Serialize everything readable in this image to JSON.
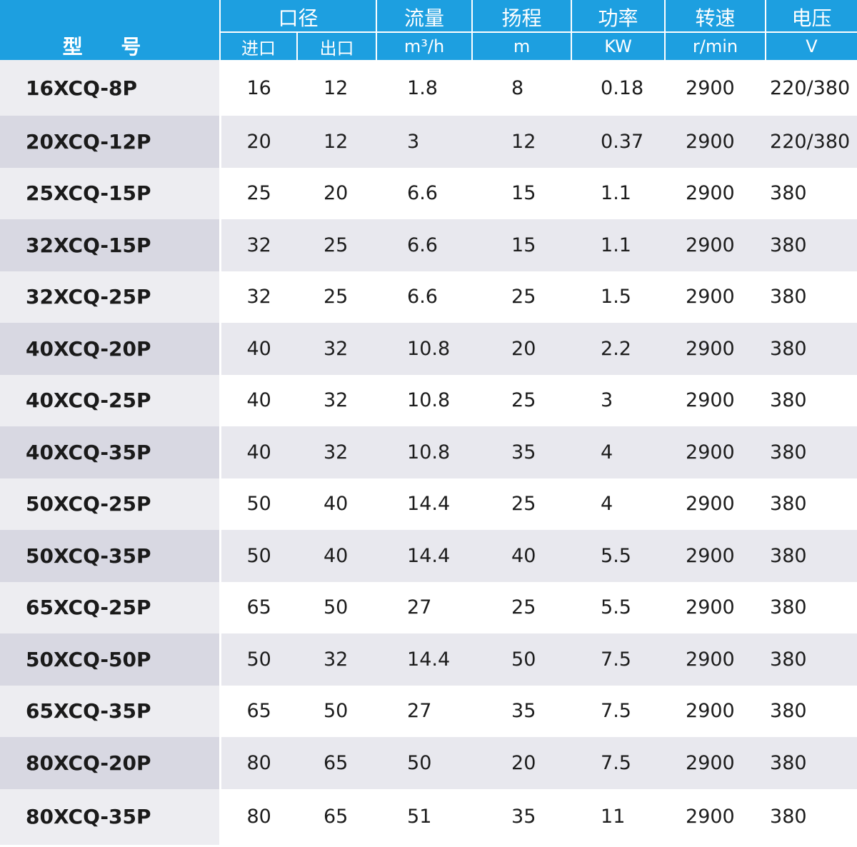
{
  "header": {
    "model": "型 号",
    "caliber": "口径",
    "inlet": "进口",
    "outlet": "出口",
    "flow": "流量",
    "flow_unit": "m³/h",
    "head": "扬程",
    "head_unit": "m",
    "power": "功率",
    "power_unit": "KW",
    "speed": "转速",
    "speed_unit": "r/min",
    "voltage": "电压",
    "voltage_unit": "V"
  },
  "rows": [
    {
      "model": "16XCQ-8P",
      "inlet": "16",
      "outlet": "12",
      "flow": "1.8",
      "head": "8",
      "power": "0.18",
      "speed": "2900",
      "voltage": "220/380"
    },
    {
      "model": "20XCQ-12P",
      "inlet": "20",
      "outlet": "12",
      "flow": "3",
      "head": "12",
      "power": "0.37",
      "speed": "2900",
      "voltage": "220/380"
    },
    {
      "model": "25XCQ-15P",
      "inlet": "25",
      "outlet": "20",
      "flow": "6.6",
      "head": "15",
      "power": "1.1",
      "speed": "2900",
      "voltage": "380"
    },
    {
      "model": "32XCQ-15P",
      "inlet": "32",
      "outlet": "25",
      "flow": "6.6",
      "head": "15",
      "power": "1.1",
      "speed": "2900",
      "voltage": "380"
    },
    {
      "model": "32XCQ-25P",
      "inlet": "32",
      "outlet": "25",
      "flow": "6.6",
      "head": "25",
      "power": "1.5",
      "speed": "2900",
      "voltage": "380"
    },
    {
      "model": "40XCQ-20P",
      "inlet": "40",
      "outlet": "32",
      "flow": "10.8",
      "head": "20",
      "power": "2.2",
      "speed": "2900",
      "voltage": "380"
    },
    {
      "model": "40XCQ-25P",
      "inlet": "40",
      "outlet": "32",
      "flow": "10.8",
      "head": "25",
      "power": "3",
      "speed": "2900",
      "voltage": "380"
    },
    {
      "model": "40XCQ-35P",
      "inlet": "40",
      "outlet": "32",
      "flow": "10.8",
      "head": "35",
      "power": "4",
      "speed": "2900",
      "voltage": "380"
    },
    {
      "model": "50XCQ-25P",
      "inlet": "50",
      "outlet": "40",
      "flow": "14.4",
      "head": "25",
      "power": "4",
      "speed": "2900",
      "voltage": "380"
    },
    {
      "model": "50XCQ-35P",
      "inlet": "50",
      "outlet": "40",
      "flow": "14.4",
      "head": "40",
      "power": "5.5",
      "speed": "2900",
      "voltage": "380"
    },
    {
      "model": "65XCQ-25P",
      "inlet": "65",
      "outlet": "50",
      "flow": "27",
      "head": "25",
      "power": "5.5",
      "speed": "2900",
      "voltage": "380"
    },
    {
      "model": "50XCQ-50P",
      "inlet": "50",
      "outlet": "32",
      "flow": "14.4",
      "head": "50",
      "power": "7.5",
      "speed": "2900",
      "voltage": "380"
    },
    {
      "model": "65XCQ-35P",
      "inlet": "65",
      "outlet": "50",
      "flow": "27",
      "head": "35",
      "power": "7.5",
      "speed": "2900",
      "voltage": "380"
    },
    {
      "model": "80XCQ-20P",
      "inlet": "80",
      "outlet": "65",
      "flow": "50",
      "head": "20",
      "power": "7.5",
      "speed": "2900",
      "voltage": "380"
    },
    {
      "model": "80XCQ-35P",
      "inlet": "80",
      "outlet": "65",
      "flow": "51",
      "head": "35",
      "power": "11",
      "speed": "2900",
      "voltage": "380"
    }
  ],
  "colors": {
    "header_bg": "#1d9fe0",
    "header_text": "#ffffff",
    "row_alt_bg": "#e8e8ee",
    "model_col_bg": "#ededf1",
    "model_col_alt_bg": "#d8d8e2"
  }
}
